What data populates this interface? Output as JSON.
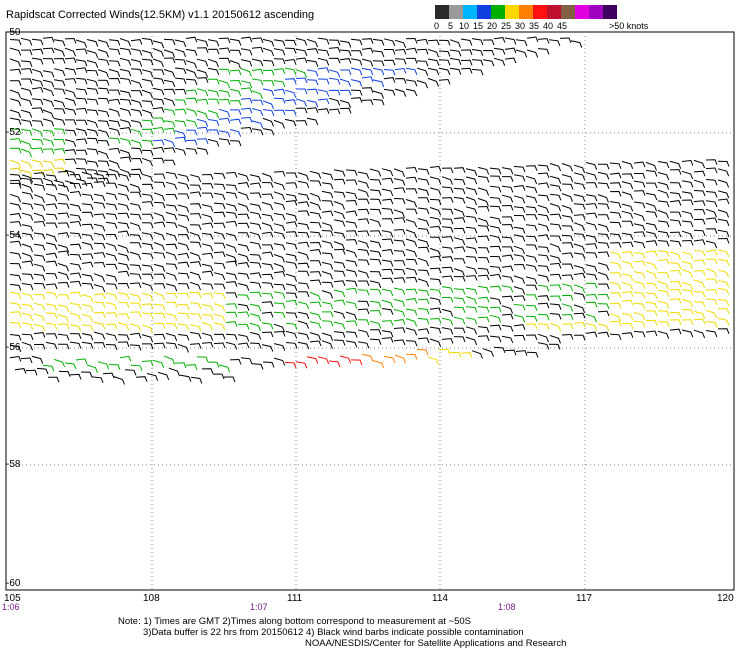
{
  "title": "Rapidscat Corrected Winds(12.5KM) v1.1 20150612 ascending",
  "legend": {
    "unit": ">50 knots",
    "ticks": [
      "0",
      "5",
      "10",
      "15",
      "20",
      "25",
      "30",
      "35",
      "40",
      "45"
    ],
    "colors": [
      "#2a2a2a",
      "#9a9a9a",
      "#00b4ff",
      "#1040e0",
      "#00b000",
      "#ffd800",
      "#ff8000",
      "#ff1010",
      "#c01030",
      "#806040",
      "#e000e0",
      "#a000c0",
      "#400060"
    ]
  },
  "map": {
    "lat_labels": [
      "-50",
      "-52",
      "-54",
      "-56",
      "-58",
      "-60"
    ],
    "lon_labels": [
      "105",
      "108",
      "111",
      "114",
      "117",
      "120"
    ],
    "time_labels": [
      "1:06",
      "1:07",
      "1:08"
    ]
  },
  "notes": {
    "line1": "Note: 1) Times are GMT 2)Times along bottom correspond to measurement at ~50S",
    "line2": "3)Data buffer is 22 hrs from 20150612 4) Black wind barbs indicate possible contamination",
    "line3": "NOAA/NESDIS/Center for Satellite Applications and Research"
  }
}
